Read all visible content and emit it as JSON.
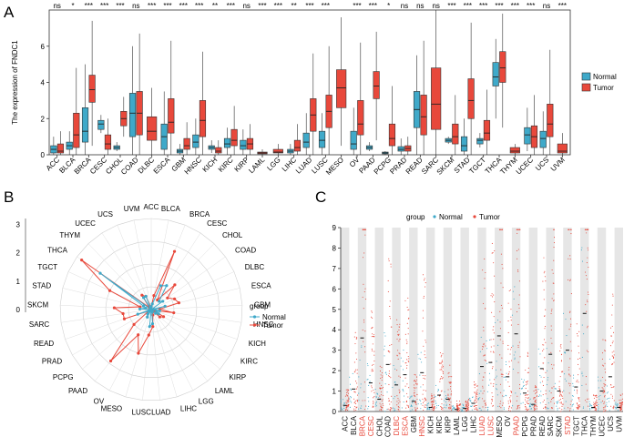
{
  "chart_data": [
    {
      "panel": "A",
      "type": "boxplot",
      "ylabel": "The expression of FNDC1",
      "ylim": [
        0,
        8
      ],
      "yticks": [
        0,
        2,
        4,
        6
      ],
      "legend": {
        "position": "right",
        "entries": [
          "Normal",
          "Tumor"
        ]
      },
      "colors": {
        "Normal": "#3fa9c9",
        "Tumor": "#e8483b"
      },
      "categories": [
        "ACC",
        "BLCA",
        "BRCA",
        "CESC",
        "CHOL",
        "COAD",
        "DLBC",
        "ESCA",
        "GBM",
        "HNSC",
        "KICH",
        "KIRC",
        "KIRP",
        "LAML",
        "LGG",
        "LIHC",
        "LUAD",
        "LUSC",
        "MESO",
        "OV",
        "PAAD",
        "PCPG",
        "PRAD",
        "READ",
        "SARC",
        "SKCM",
        "STAD",
        "TGCT",
        "THCA",
        "THYM",
        "UCEC",
        "UCS",
        "UVM"
      ],
      "significance": [
        "ns",
        "*",
        "***",
        "***",
        "***",
        "ns",
        "***",
        "***",
        "***",
        "***",
        "**",
        "***",
        "ns",
        "***",
        "***",
        "**",
        "***",
        "***",
        "",
        "***",
        "***",
        "*",
        "ns",
        "ns",
        "ns",
        "***",
        "***",
        "***",
        "***",
        "***",
        "***",
        "ns",
        "***"
      ],
      "normal": [
        {
          "min": 0,
          "q1": 0.1,
          "med": 0.3,
          "q3": 0.5,
          "max": 1.0
        },
        {
          "min": 0,
          "q1": 0.3,
          "med": 0.5,
          "q3": 0.7,
          "max": 1.3
        },
        {
          "min": 0,
          "q1": 0.7,
          "med": 1.3,
          "q3": 2.6,
          "max": 5.0
        },
        {
          "min": 1.2,
          "q1": 1.4,
          "med": 1.7,
          "q3": 1.9,
          "max": 2.2
        },
        {
          "min": 0.2,
          "q1": 0.3,
          "med": 0.4,
          "q3": 0.5,
          "max": 0.7
        },
        {
          "min": 0,
          "q1": 1.0,
          "med": 2.3,
          "q3": 3.4,
          "max": 6.0
        },
        null,
        {
          "min": 0,
          "q1": 0.3,
          "med": 1.0,
          "q3": 1.7,
          "max": 3.5
        },
        {
          "min": 0,
          "q1": 0.1,
          "med": 0.2,
          "q3": 0.3,
          "max": 0.6
        },
        {
          "min": 0,
          "q1": 0.4,
          "med": 0.7,
          "q3": 1.1,
          "max": 2.0
        },
        {
          "min": 0.1,
          "q1": 0.3,
          "med": 0.4,
          "q3": 0.5,
          "max": 0.8
        },
        {
          "min": 0,
          "q1": 0.4,
          "med": 0.6,
          "q3": 0.9,
          "max": 1.5
        },
        {
          "min": 0,
          "q1": 0.3,
          "med": 0.5,
          "q3": 0.8,
          "max": 1.4
        },
        null,
        null,
        {
          "min": 0,
          "q1": 0.1,
          "med": 0.2,
          "q3": 0.3,
          "max": 0.6
        },
        {
          "min": 0,
          "q1": 0.4,
          "med": 0.7,
          "q3": 1.2,
          "max": 2.3
        },
        {
          "min": 0,
          "q1": 0.4,
          "med": 0.8,
          "q3": 1.3,
          "max": 2.3
        },
        null,
        {
          "min": 0,
          "q1": 0.3,
          "med": 0.6,
          "q3": 1.3,
          "max": 2.6
        },
        {
          "min": 0.2,
          "q1": 0.3,
          "med": 0.4,
          "q3": 0.5,
          "max": 0.7
        },
        {
          "min": 0,
          "q1": 0.05,
          "med": 0.1,
          "q3": 0.15,
          "max": 0.2
        },
        {
          "min": 0,
          "q1": 0.2,
          "med": 0.3,
          "q3": 0.45,
          "max": 0.9
        },
        {
          "min": 0,
          "q1": 1.5,
          "med": 2.5,
          "q3": 3.5,
          "max": 5.5
        },
        null,
        {
          "min": 0.6,
          "q1": 0.7,
          "med": 0.8,
          "q3": 0.9,
          "max": 1.0
        },
        {
          "min": 0,
          "q1": 0.2,
          "med": 0.5,
          "q3": 1.0,
          "max": 2.0
        },
        {
          "min": 0.4,
          "q1": 0.6,
          "med": 0.8,
          "q3": 0.9,
          "max": 1.2
        },
        {
          "min": 2.0,
          "q1": 3.8,
          "med": 4.3,
          "q3": 5.1,
          "max": 6.4
        },
        null,
        {
          "min": 0.2,
          "q1": 0.6,
          "med": 1.1,
          "q3": 1.5,
          "max": 2.6
        },
        {
          "min": 0,
          "q1": 0.4,
          "med": 0.9,
          "q3": 1.3,
          "max": 2.4
        },
        null
      ],
      "tumor": [
        {
          "min": 0,
          "q1": 0.1,
          "med": 0.2,
          "q3": 0.6,
          "max": 1.3
        },
        {
          "min": 0,
          "q1": 0.4,
          "med": 1.1,
          "q3": 2.3,
          "max": 4.8
        },
        {
          "min": 0.5,
          "q1": 2.9,
          "med": 3.6,
          "q3": 4.4,
          "max": 7.4
        },
        {
          "min": 0,
          "q1": 0.3,
          "med": 0.6,
          "q3": 1.1,
          "max": 2.0
        },
        {
          "min": 1.0,
          "q1": 1.6,
          "med": 2.0,
          "q3": 2.4,
          "max": 3.2
        },
        {
          "min": 0,
          "q1": 1.1,
          "med": 2.3,
          "q3": 3.5,
          "max": 6.7
        },
        {
          "min": 0,
          "q1": 0.8,
          "med": 1.3,
          "q3": 2.1,
          "max": 3.7
        },
        {
          "min": 0,
          "q1": 1.2,
          "med": 1.8,
          "q3": 3.1,
          "max": 6.3
        },
        {
          "min": 0,
          "q1": 0.3,
          "med": 0.5,
          "q3": 0.9,
          "max": 1.8
        },
        {
          "min": 0,
          "q1": 1.0,
          "med": 1.9,
          "q3": 3.0,
          "max": 5.7
        },
        {
          "min": 0,
          "q1": 0.1,
          "med": 0.2,
          "q3": 0.4,
          "max": 0.8
        },
        {
          "min": 0,
          "q1": 0.5,
          "med": 0.8,
          "q3": 1.4,
          "max": 2.7
        },
        {
          "min": 0,
          "q1": 0.3,
          "med": 0.6,
          "q3": 0.9,
          "max": 1.7
        },
        {
          "min": 0,
          "q1": 0.05,
          "med": 0.1,
          "q3": 0.15,
          "max": 0.3
        },
        {
          "min": 0,
          "q1": 0.1,
          "med": 0.15,
          "q3": 0.3,
          "max": 0.6
        },
        {
          "min": 0,
          "q1": 0.2,
          "med": 0.4,
          "q3": 0.8,
          "max": 1.7
        },
        {
          "min": 0,
          "q1": 1.3,
          "med": 2.2,
          "q3": 3.1,
          "max": 5.6
        },
        {
          "min": 0,
          "q1": 1.5,
          "med": 2.4,
          "q3": 3.3,
          "max": 6.0
        },
        {
          "min": 0.5,
          "q1": 2.6,
          "med": 3.7,
          "q3": 4.7,
          "max": 7.6
        },
        {
          "min": 0,
          "q1": 1.1,
          "med": 1.7,
          "q3": 3.0,
          "max": 6.2
        },
        {
          "min": 0.8,
          "q1": 3.1,
          "med": 3.8,
          "q3": 4.6,
          "max": 6.8
        },
        {
          "min": 0,
          "q1": 0.5,
          "med": 0.9,
          "q3": 1.7,
          "max": 3.8
        },
        {
          "min": 0,
          "q1": 0.2,
          "med": 0.35,
          "q3": 0.5,
          "max": 1.0
        },
        {
          "min": 0,
          "q1": 1.1,
          "med": 2.1,
          "q3": 3.3,
          "max": 6.3
        },
        {
          "min": 0,
          "q1": 1.4,
          "med": 2.8,
          "q3": 4.8,
          "max": 8.0
        },
        {
          "min": 0,
          "q1": 0.6,
          "med": 1.0,
          "q3": 1.7,
          "max": 3.3
        },
        {
          "min": 0,
          "q1": 2.0,
          "med": 3.0,
          "q3": 4.2,
          "max": 7.3
        },
        {
          "min": 0,
          "q1": 0.8,
          "med": 1.2,
          "q3": 1.9,
          "max": 3.6
        },
        {
          "min": 1.5,
          "q1": 4.0,
          "med": 4.8,
          "q3": 5.7,
          "max": 7.8
        },
        {
          "min": 0,
          "q1": 0.1,
          "med": 0.2,
          "q3": 0.4,
          "max": 0.6
        },
        {
          "min": 0,
          "q1": 0.4,
          "med": 1.0,
          "q3": 1.6,
          "max": 3.3
        },
        {
          "min": 0,
          "q1": 1.0,
          "med": 1.7,
          "q3": 2.8,
          "max": 5.8
        },
        {
          "min": 0,
          "q1": 0.1,
          "med": 0.2,
          "q3": 0.6,
          "max": 1.2
        }
      ]
    },
    {
      "panel": "B",
      "type": "radar",
      "rticks": [
        0,
        1,
        2,
        3
      ],
      "legend_title": "group",
      "legend": [
        "Normal",
        "Tumor"
      ],
      "categories": [
        "ACC",
        "BLCA",
        "BRCA",
        "CESC",
        "CHOL",
        "COAD",
        "DLBC",
        "ESCA",
        "GBM",
        "HNSC",
        "KICH",
        "KIRC",
        "KIRP",
        "LAML",
        "LGG",
        "LIHC",
        "LUAD",
        "LUSC",
        "MESO",
        "OV",
        "PAAD",
        "PCPG",
        "PRAD",
        "READ",
        "SARC",
        "SKCM",
        "STAD",
        "TGCT",
        "THCA",
        "THYM",
        "UCEC",
        "UCS",
        "UVM"
      ],
      "normal": [
        0.1,
        0.2,
        0.9,
        1.0,
        0.4,
        0.5,
        0,
        0.5,
        0.1,
        0.3,
        0.2,
        0.3,
        0.2,
        0,
        0,
        0.1,
        0.5,
        0.6,
        0,
        0.3,
        0.2,
        0.1,
        0.1,
        0.5,
        0,
        0.4,
        0.2,
        0.3,
        2.2,
        0,
        0.5,
        0.5,
        0
      ],
      "tumor": [
        0.1,
        0.5,
        2.2,
        0.4,
        1.2,
        0.7,
        0.9,
        1.0,
        0.3,
        0.8,
        0.1,
        0.5,
        0.4,
        0,
        0.1,
        0.2,
        0.6,
        0.9,
        1.6,
        1.0,
        2.3,
        0.8,
        0.1,
        1.0,
        1.0,
        1.3,
        0.4,
        1.6,
        3.0,
        0.1,
        0.6,
        0.5,
        0.1
      ]
    },
    {
      "panel": "C",
      "type": "scatter",
      "legend_title": "group",
      "legend": [
        "Normal",
        "Tumor"
      ],
      "ylim": [
        0,
        9
      ],
      "yticks": [
        0,
        1,
        2,
        3,
        4,
        5,
        6,
        7,
        8,
        9
      ],
      "categories": [
        "ACC",
        "BLCA",
        "BRCA",
        "CESC",
        "CHOL",
        "COAD",
        "DLBC",
        "ESCA",
        "GBM",
        "HNSC",
        "KICH",
        "KIRC",
        "KIRP",
        "LAML",
        "LGG",
        "LIHC",
        "LUAD",
        "LUSC",
        "MESO",
        "OV",
        "PAAD",
        "PCPG",
        "PRAD",
        "READ",
        "SARC",
        "SKCM",
        "STAD",
        "TGCT",
        "THCA",
        "THYM",
        "UCEC",
        "UCS",
        "UVM"
      ],
      "highlighted": [
        "BRCA",
        "CESC",
        "DLBC",
        "ESCA",
        "HNSC",
        "LUAD",
        "LUSC",
        "PAAD",
        "STAD"
      ],
      "median": [
        0.3,
        1.1,
        3.6,
        1.4,
        0.6,
        2.3,
        1.3,
        1.8,
        0.5,
        1.9,
        0.2,
        0.8,
        0.6,
        0.1,
        0.15,
        0.4,
        2.2,
        2.4,
        3.7,
        1.7,
        3.8,
        0.9,
        0.35,
        2.1,
        2.8,
        1.0,
        3.0,
        1.2,
        4.8,
        0.2,
        1.0,
        1.7,
        0.2
      ]
    }
  ],
  "panel_labels": {
    "a": "A",
    "b": "B",
    "c": "C"
  }
}
